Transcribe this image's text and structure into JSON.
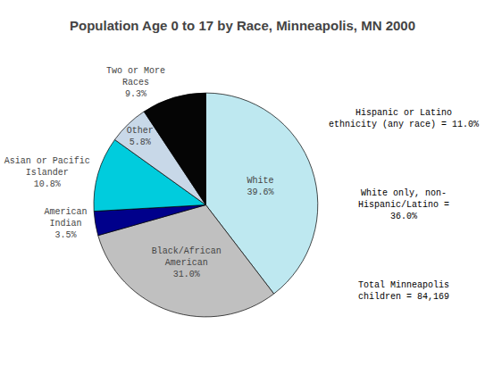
{
  "chart_data": {
    "type": "pie",
    "title": "Population Age 0 to 17 by Race, Minneapolis, MN 2000",
    "categories": [
      "White",
      "Black/African\nAmerican",
      "American\nIndian",
      "Asian or Pacific\nIslander",
      "Other",
      "Two or More\nRaces"
    ],
    "values": [
      39.6,
      31.0,
      3.5,
      10.8,
      5.8,
      9.3
    ],
    "value_labels": [
      "39.6%",
      "31.0%",
      "3.5%",
      "10.8%",
      "5.8%",
      "9.3%"
    ],
    "colors": [
      "#BEE8F0",
      "#C0C0C0",
      "#00008B",
      "#00CCDD",
      "#C8D8E8",
      "#050505"
    ],
    "annotations": [
      "Hispanic or Latino\nethnicity (any race) = 11.0%",
      "White only, non-\nHispanic/Latino =\n36.0%",
      "Total Minneapolis\nchildren = 84,169"
    ]
  }
}
